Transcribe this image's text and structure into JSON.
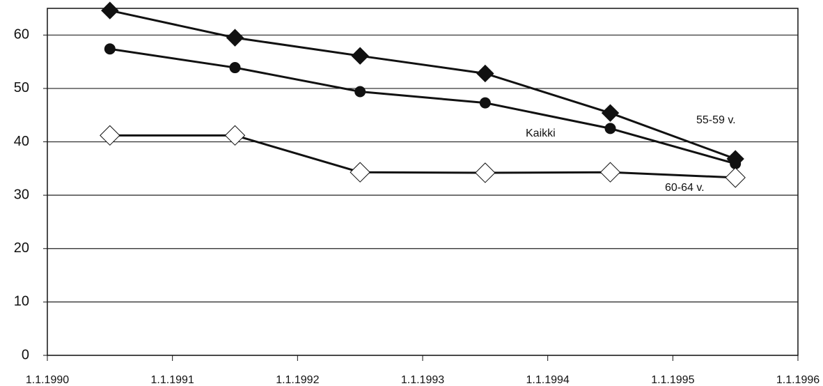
{
  "chart_data": {
    "type": "line",
    "xlim": [
      1990,
      1996
    ],
    "xticks": [
      {
        "value": 1990,
        "label": "1.1.1990"
      },
      {
        "value": 1991,
        "label": "1.1.1991"
      },
      {
        "value": 1992,
        "label": "1.1.1992"
      },
      {
        "value": 1993,
        "label": "1.1.1993"
      },
      {
        "value": 1994,
        "label": "1.1.1994"
      },
      {
        "value": 1995,
        "label": "1.1.1995"
      },
      {
        "value": 1996,
        "label": "1.1.1996"
      }
    ],
    "ylim": [
      0,
      65
    ],
    "yticks": [
      0,
      10,
      20,
      30,
      40,
      50,
      60
    ],
    "grid": true,
    "x": [
      1990.5,
      1991.5,
      1992.5,
      1993.5,
      1994.5,
      1995.5
    ],
    "series": [
      {
        "name": "55-59 v.",
        "color": "#111111",
        "marker": "diamond",
        "values": [
          64.6,
          59.5,
          56.1,
          52.8,
          45.4,
          36.8
        ]
      },
      {
        "name": "Kaikki",
        "color": "#111111",
        "marker": "circle",
        "values": [
          57.4,
          53.9,
          49.4,
          47.3,
          42.5,
          35.9
        ]
      },
      {
        "name": "60-64 v.",
        "color": "#111111",
        "marker": "diamond-open",
        "values": [
          41.2,
          41.2,
          34.3,
          34.2,
          34.3,
          33.3
        ]
      }
    ]
  }
}
